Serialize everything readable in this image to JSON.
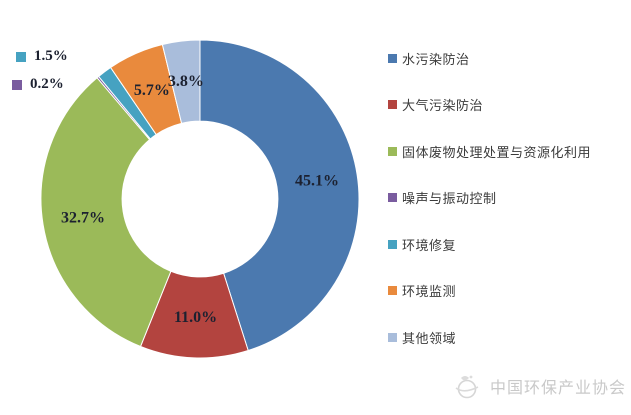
{
  "chart_data": {
    "type": "pie",
    "style": "donut",
    "hole_ratio": 0.49,
    "legend_position": "right",
    "label_text_color": "#1c2130",
    "series": [
      {
        "label": "水污染防治",
        "value": 45.1,
        "pct_label": "45.1%",
        "color": "#4B79AF"
      },
      {
        "label": "大气污染防治",
        "value": 11.0,
        "pct_label": "11.0%",
        "color": "#B3443F"
      },
      {
        "label": "固体废物处理处置与资源化利用",
        "value": 32.7,
        "pct_label": "32.7%",
        "color": "#9BBA59"
      },
      {
        "label": "噪声与振动控制",
        "value": 0.2,
        "pct_label": "0.2%",
        "color": "#7A5C9F",
        "callout": true
      },
      {
        "label": "环境修复",
        "value": 1.5,
        "pct_label": "1.5%",
        "color": "#46A2C1",
        "callout": true
      },
      {
        "label": "环境监测",
        "value": 5.7,
        "pct_label": "5.7%",
        "color": "#E98A3D"
      },
      {
        "label": "其他领域",
        "value": 3.8,
        "pct_label": "3.8%",
        "color": "#A9BDDB"
      }
    ]
  },
  "watermark": {
    "text": "中国环保产业协会",
    "color": "#c9c9c9"
  }
}
